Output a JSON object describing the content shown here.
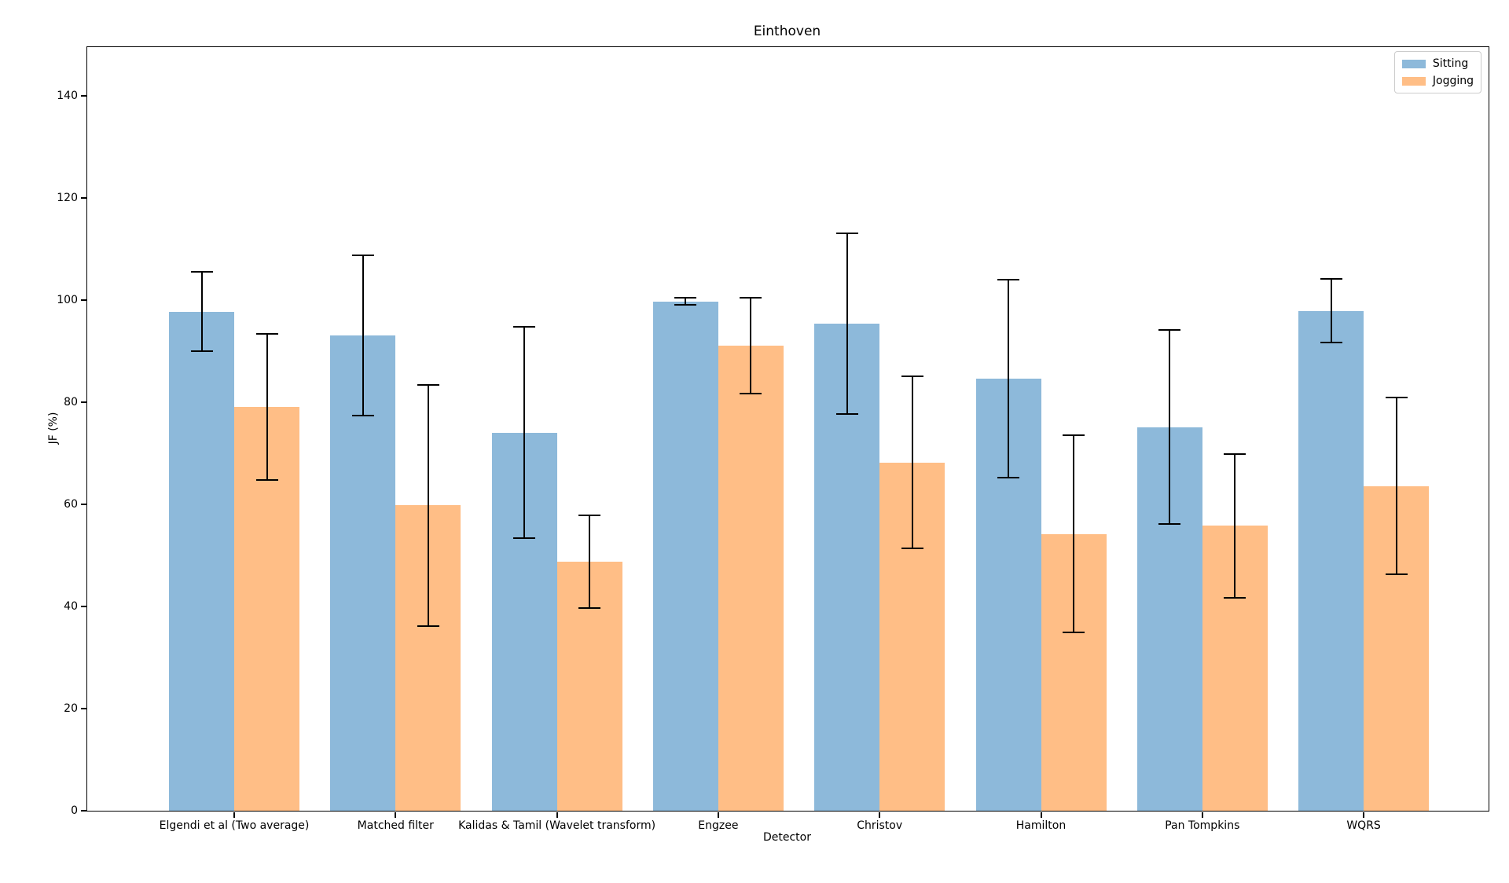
{
  "chart_data": {
    "type": "bar",
    "title": "Einthoven",
    "xlabel": "Detector",
    "ylabel": "JF (%)",
    "categories": [
      "Elgendi et al (Two average)",
      "Matched filter",
      "Kalidas & Tamil (Wavelet transform)",
      "Engzee",
      "Christov",
      "Hamilton",
      "Pan Tompkins",
      "WQRS"
    ],
    "series": [
      {
        "name": "Sitting",
        "color": "#8db9da",
        "values": [
          97.7,
          93.1,
          74.0,
          99.7,
          95.3,
          84.6,
          75.1,
          97.9
        ],
        "errors": [
          7.8,
          15.7,
          20.7,
          0.7,
          17.7,
          19.4,
          19.0,
          6.3
        ]
      },
      {
        "name": "Jogging",
        "color": "#ffbe86",
        "values": [
          79.1,
          59.8,
          48.8,
          91.0,
          68.2,
          54.2,
          55.8,
          63.6
        ],
        "errors": [
          14.3,
          23.6,
          9.1,
          9.4,
          16.9,
          19.3,
          14.1,
          17.3
        ]
      }
    ],
    "y_ticks": [
      0,
      20,
      40,
      60,
      80,
      100,
      120,
      140
    ],
    "ylim": [
      0,
      149.5
    ],
    "grid": false,
    "legend_position": "upper right",
    "error_bar_color": "#000000",
    "bar_layout": "grouped"
  }
}
